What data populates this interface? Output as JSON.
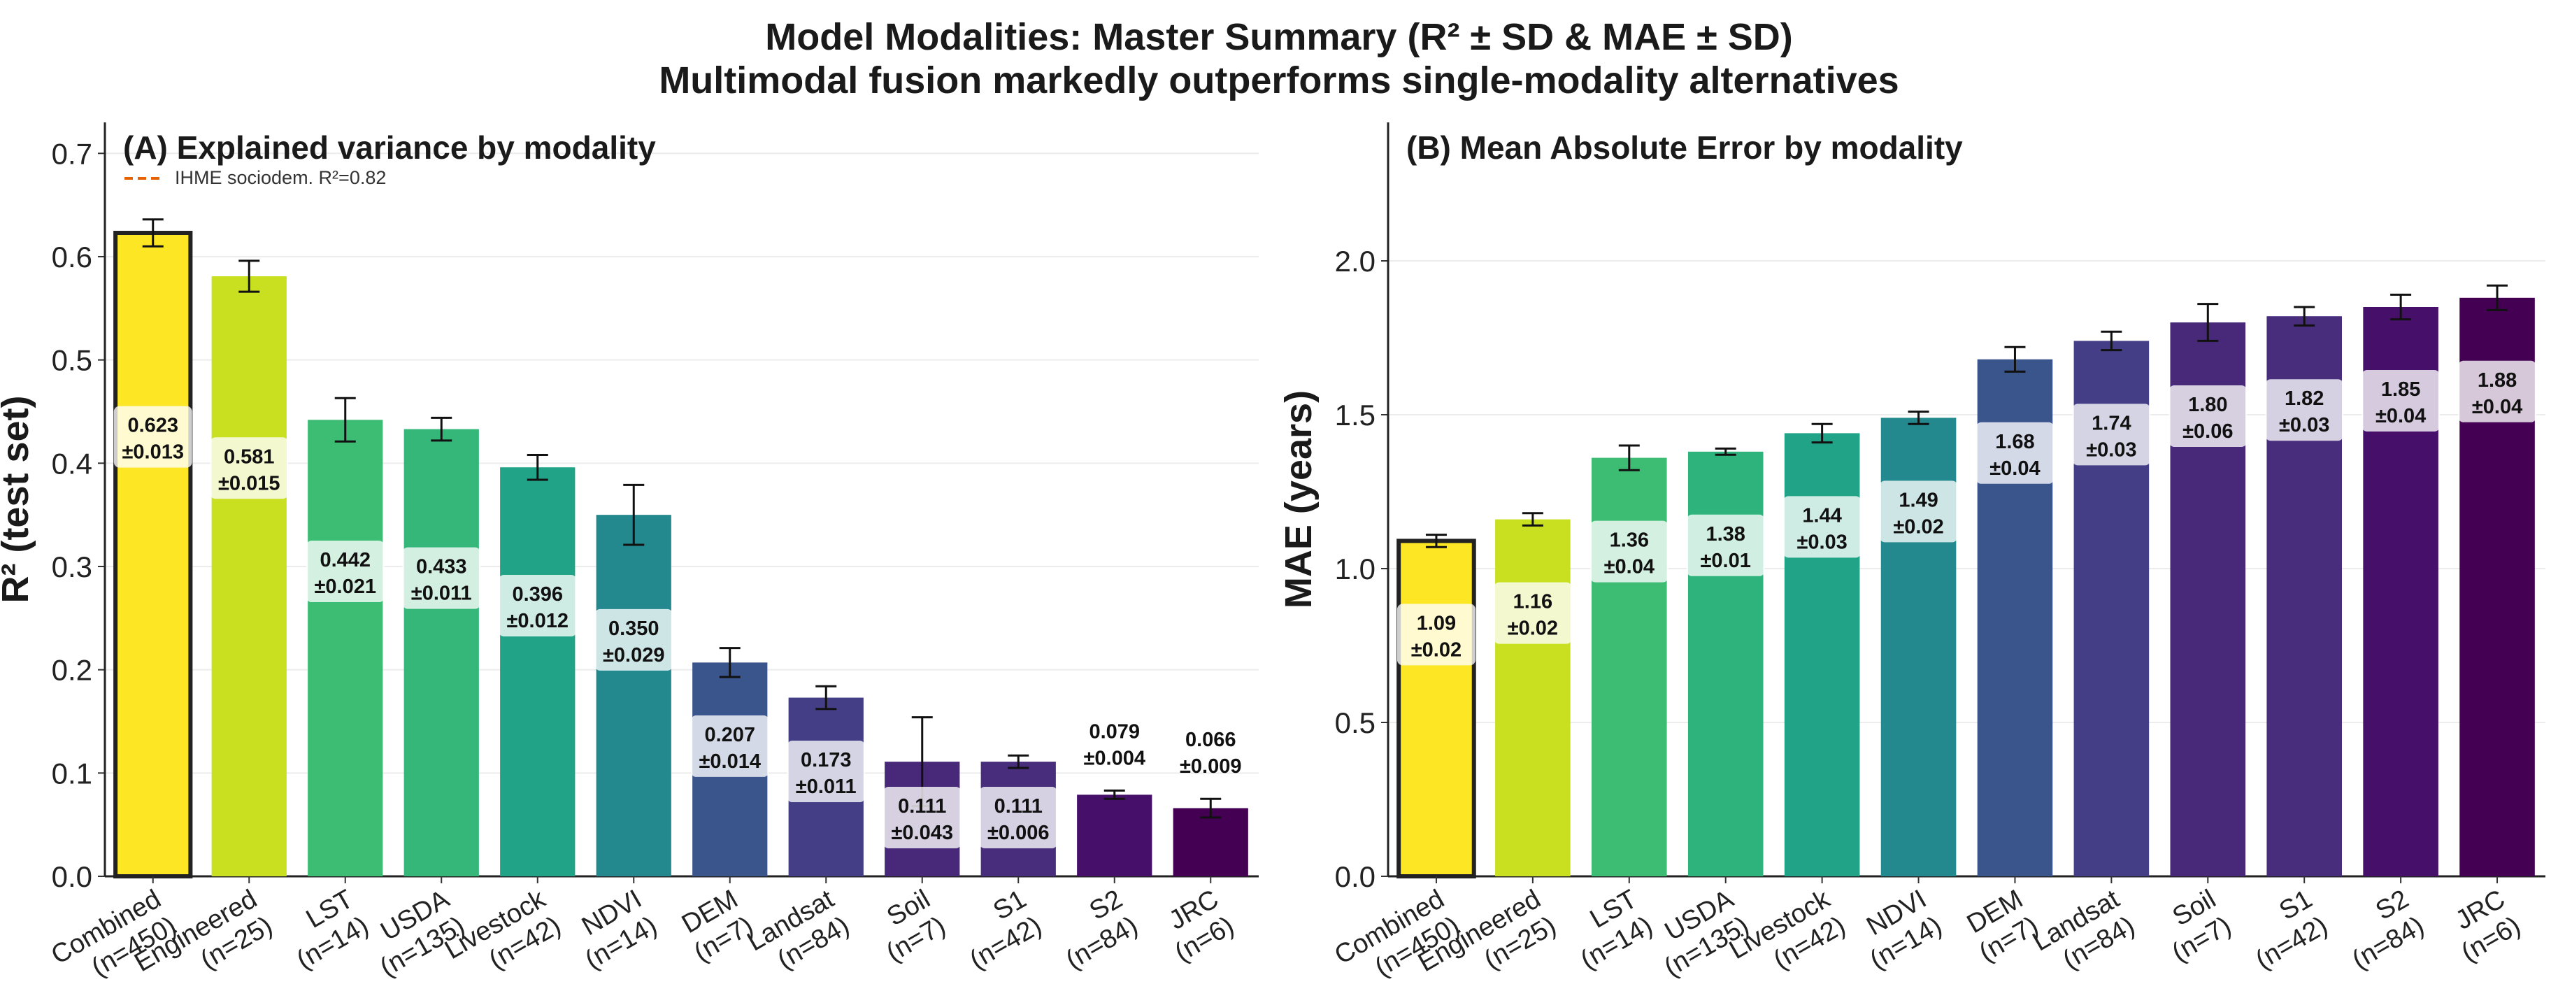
{
  "figure": {
    "title_line1": "Model Modalities: Master Summary (R² ± SD & MAE ± SD)",
    "title_line2": "Multimodal fusion markedly outperforms single-modality alternatives"
  },
  "chart_data": [
    {
      "type": "bar",
      "panel": "A",
      "title": "(A)  Explained variance by modality",
      "xlabel": "",
      "ylabel": "R²  (test set)",
      "ylim": [
        0,
        0.73
      ],
      "yticks": [
        0.0,
        0.1,
        0.2,
        0.3,
        0.4,
        0.5,
        0.6,
        0.7
      ],
      "ytick_labels": [
        "0.0",
        "0.1",
        "0.2",
        "0.3",
        "0.4",
        "0.5",
        "0.6",
        "0.7"
      ],
      "grid": "horizontal",
      "categories": [
        "Combined",
        "Engineered",
        "LST",
        "USDA",
        "Livestock",
        "NDVI",
        "DEM",
        "Landsat",
        "Soil",
        "S1",
        "S2",
        "JRC"
      ],
      "category_counts": [
        "(n=450)",
        "(n=25)",
        "(n=14)",
        "(n=135)",
        "(n=42)",
        "(n=14)",
        "(n=7)",
        "(n=84)",
        "(n=7)",
        "(n=42)",
        "(n=84)",
        "(n=6)"
      ],
      "values": [
        0.623,
        0.581,
        0.442,
        0.433,
        0.396,
        0.35,
        0.207,
        0.173,
        0.111,
        0.111,
        0.079,
        0.066
      ],
      "errors": [
        0.013,
        0.015,
        0.021,
        0.011,
        0.012,
        0.029,
        0.014,
        0.011,
        0.043,
        0.006,
        0.004,
        0.009
      ],
      "value_labels": [
        "0.623",
        "0.581",
        "0.442",
        "0.433",
        "0.396",
        "0.350",
        "0.207",
        "0.173",
        "0.111",
        "0.111",
        "0.079",
        "0.066"
      ],
      "error_labels": [
        "±0.013",
        "±0.015",
        "±0.021",
        "±0.011",
        "±0.012",
        "±0.029",
        "±0.014",
        "±0.011",
        "±0.043",
        "±0.006",
        "±0.004",
        "±0.009"
      ],
      "colors": [
        "#fde725",
        "#c8e020",
        "#3dbc74",
        "#35b779",
        "#20a386",
        "#23898e",
        "#3a548c",
        "#433e85",
        "#482979",
        "#472d7b",
        "#46106a",
        "#440154"
      ],
      "highlight_index": 0,
      "reference_line": {
        "label": "IHME sociodem. R²=0.82",
        "value": 0.82,
        "color": "#e66101"
      },
      "legend": "top-left"
    },
    {
      "type": "bar",
      "panel": "B",
      "title": "(B)  Mean Absolute Error by modality",
      "xlabel": "",
      "ylabel": "MAE  (years)",
      "ylim": [
        0,
        2.45
      ],
      "yticks": [
        0.0,
        0.5,
        1.0,
        1.5,
        2.0
      ],
      "ytick_labels": [
        "0.0",
        "0.5",
        "1.0",
        "1.5",
        "2.0"
      ],
      "grid": "horizontal",
      "categories": [
        "Combined",
        "Engineered",
        "LST",
        "USDA",
        "Livestock",
        "NDVI",
        "DEM",
        "Landsat",
        "Soil",
        "S1",
        "S2",
        "JRC"
      ],
      "category_counts": [
        "(n=450)",
        "(n=25)",
        "(n=14)",
        "(n=135)",
        "(n=42)",
        "(n=14)",
        "(n=7)",
        "(n=84)",
        "(n=7)",
        "(n=42)",
        "(n=84)",
        "(n=6)"
      ],
      "values": [
        1.09,
        1.16,
        1.36,
        1.38,
        1.44,
        1.49,
        1.68,
        1.74,
        1.8,
        1.82,
        1.85,
        1.88
      ],
      "errors": [
        0.02,
        0.02,
        0.04,
        0.01,
        0.03,
        0.02,
        0.04,
        0.03,
        0.06,
        0.03,
        0.04,
        0.04
      ],
      "value_labels": [
        "1.09",
        "1.16",
        "1.36",
        "1.38",
        "1.44",
        "1.49",
        "1.68",
        "1.74",
        "1.80",
        "1.82",
        "1.85",
        "1.88"
      ],
      "error_labels": [
        "±0.02",
        "±0.02",
        "±0.04",
        "±0.01",
        "±0.03",
        "±0.02",
        "±0.04",
        "±0.03",
        "±0.06",
        "±0.03",
        "±0.04",
        "±0.04"
      ],
      "colors": [
        "#fde725",
        "#c8e020",
        "#3dbc74",
        "#2eb37c",
        "#20a386",
        "#23898e",
        "#3a548c",
        "#433e85",
        "#482979",
        "#472d7b",
        "#46106a",
        "#440154"
      ],
      "highlight_index": 0
    }
  ]
}
